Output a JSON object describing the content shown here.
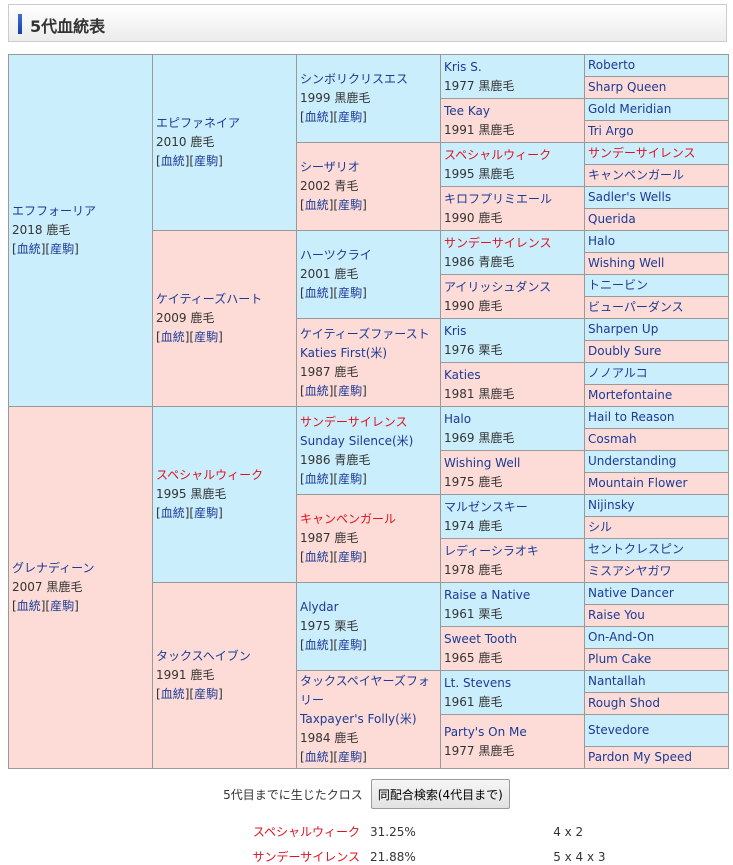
{
  "header": {
    "title": "5代血統表"
  },
  "colors": {
    "sire_bg": "#cbeefc",
    "dam_bg": "#fddcd7",
    "link": "#1c3a96",
    "cross_red": "#e0101e"
  },
  "links": {
    "pedigree": "血統",
    "offspring": "産駒"
  },
  "gen1": [
    {
      "name": "エフフォーリア",
      "info": "2018 鹿毛",
      "links": true
    },
    {
      "name": "グレナディーン",
      "info": "2007 黒鹿毛",
      "links": true
    }
  ],
  "gen2": [
    {
      "name": "エピファネイア",
      "info": "2010 鹿毛",
      "links": true
    },
    {
      "name": "ケイティーズハート",
      "info": "2009 鹿毛",
      "links": true
    },
    {
      "name": "スペシャルウィーク",
      "info": "1995 黒鹿毛",
      "links": true,
      "red": true
    },
    {
      "name": "タックスヘイブン",
      "info": "1991 鹿毛",
      "links": true
    }
  ],
  "gen3": [
    {
      "name": "シンボリクリスエス",
      "info": "1999 黒鹿毛",
      "links": true
    },
    {
      "name": "シーザリオ",
      "info": "2002 青毛",
      "links": true
    },
    {
      "name": "ハーツクライ",
      "info": "2001 鹿毛",
      "links": true
    },
    {
      "name": "ケイティーズファースト",
      "en": "Katies First(米)",
      "info": "1987 鹿毛",
      "links": true
    },
    {
      "name": "サンデーサイレンス",
      "en": "Sunday Silence(米)",
      "info": "1986 青鹿毛",
      "links": true,
      "red": true
    },
    {
      "name": "キャンペンガール",
      "info": "1987 鹿毛",
      "links": true,
      "red": true
    },
    {
      "name": "Alydar",
      "info": "1975 栗毛",
      "links": true
    },
    {
      "name": "タックスペイヤーズフォリー",
      "en": "Taxpayer's Folly(米)",
      "info": "1984 鹿毛",
      "links": true
    }
  ],
  "gen4": [
    {
      "name": "Kris S.",
      "info": "1977 黒鹿毛"
    },
    {
      "name": "Tee Kay",
      "info": "1991 黒鹿毛"
    },
    {
      "name": "スペシャルウィーク",
      "info": "1995 黒鹿毛",
      "red": true
    },
    {
      "name": "キロフプリミエール",
      "info": "1990 鹿毛"
    },
    {
      "name": "サンデーサイレンス",
      "info": "1986 青鹿毛",
      "red": true
    },
    {
      "name": "アイリッシュダンス",
      "info": "1990 鹿毛"
    },
    {
      "name": "Kris",
      "info": "1976 栗毛"
    },
    {
      "name": "Katies",
      "info": "1981 黒鹿毛"
    },
    {
      "name": "Halo",
      "info": "1969 黒鹿毛"
    },
    {
      "name": "Wishing Well",
      "info": "1975 鹿毛"
    },
    {
      "name": "マルゼンスキー",
      "info": "1974 鹿毛"
    },
    {
      "name": "レディーシラオキ",
      "info": "1978 鹿毛"
    },
    {
      "name": "Raise a Native",
      "info": "1961 栗毛"
    },
    {
      "name": "Sweet Tooth",
      "info": "1965 鹿毛"
    },
    {
      "name": "Lt. Stevens",
      "info": "1961 鹿毛"
    },
    {
      "name": "Party's On Me",
      "info": "1977 黒鹿毛"
    }
  ],
  "gen5": [
    {
      "name": "Roberto"
    },
    {
      "name": "Sharp Queen"
    },
    {
      "name": "Gold Meridian"
    },
    {
      "name": "Tri Argo"
    },
    {
      "name": "サンデーサイレンス",
      "red": true
    },
    {
      "name": "キャンペンガール"
    },
    {
      "name": "Sadler's Wells"
    },
    {
      "name": "Querida"
    },
    {
      "name": "Halo"
    },
    {
      "name": "Wishing Well"
    },
    {
      "name": "トニービン"
    },
    {
      "name": "ビューパーダンス"
    },
    {
      "name": "Sharpen Up"
    },
    {
      "name": "Doubly Sure"
    },
    {
      "name": "ノノアルコ"
    },
    {
      "name": "Mortefontaine"
    },
    {
      "name": "Hail to Reason"
    },
    {
      "name": "Cosmah"
    },
    {
      "name": "Understanding"
    },
    {
      "name": "Mountain Flower"
    },
    {
      "name": "Nijinsky"
    },
    {
      "name": "シル"
    },
    {
      "name": "セントクレスピン"
    },
    {
      "name": "ミスアシヤガワ"
    },
    {
      "name": "Native Dancer"
    },
    {
      "name": "Raise You"
    },
    {
      "name": "On-And-On"
    },
    {
      "name": "Plum Cake"
    },
    {
      "name": "Nantallah"
    },
    {
      "name": "Rough Shod"
    },
    {
      "name": "Stevedore"
    },
    {
      "name": "Pardon My Speed"
    }
  ],
  "footer": {
    "cross_label": "5代目までに生じたクロス",
    "search_button": "同配合検索(4代目まで)",
    "crosses": [
      {
        "name": "スペシャルウィーク",
        "percent": "31.25%",
        "pattern": "4 x 2"
      },
      {
        "name": "サンデーサイレンス",
        "percent": "21.88%",
        "pattern": "5 x 4 x 3"
      }
    ]
  }
}
